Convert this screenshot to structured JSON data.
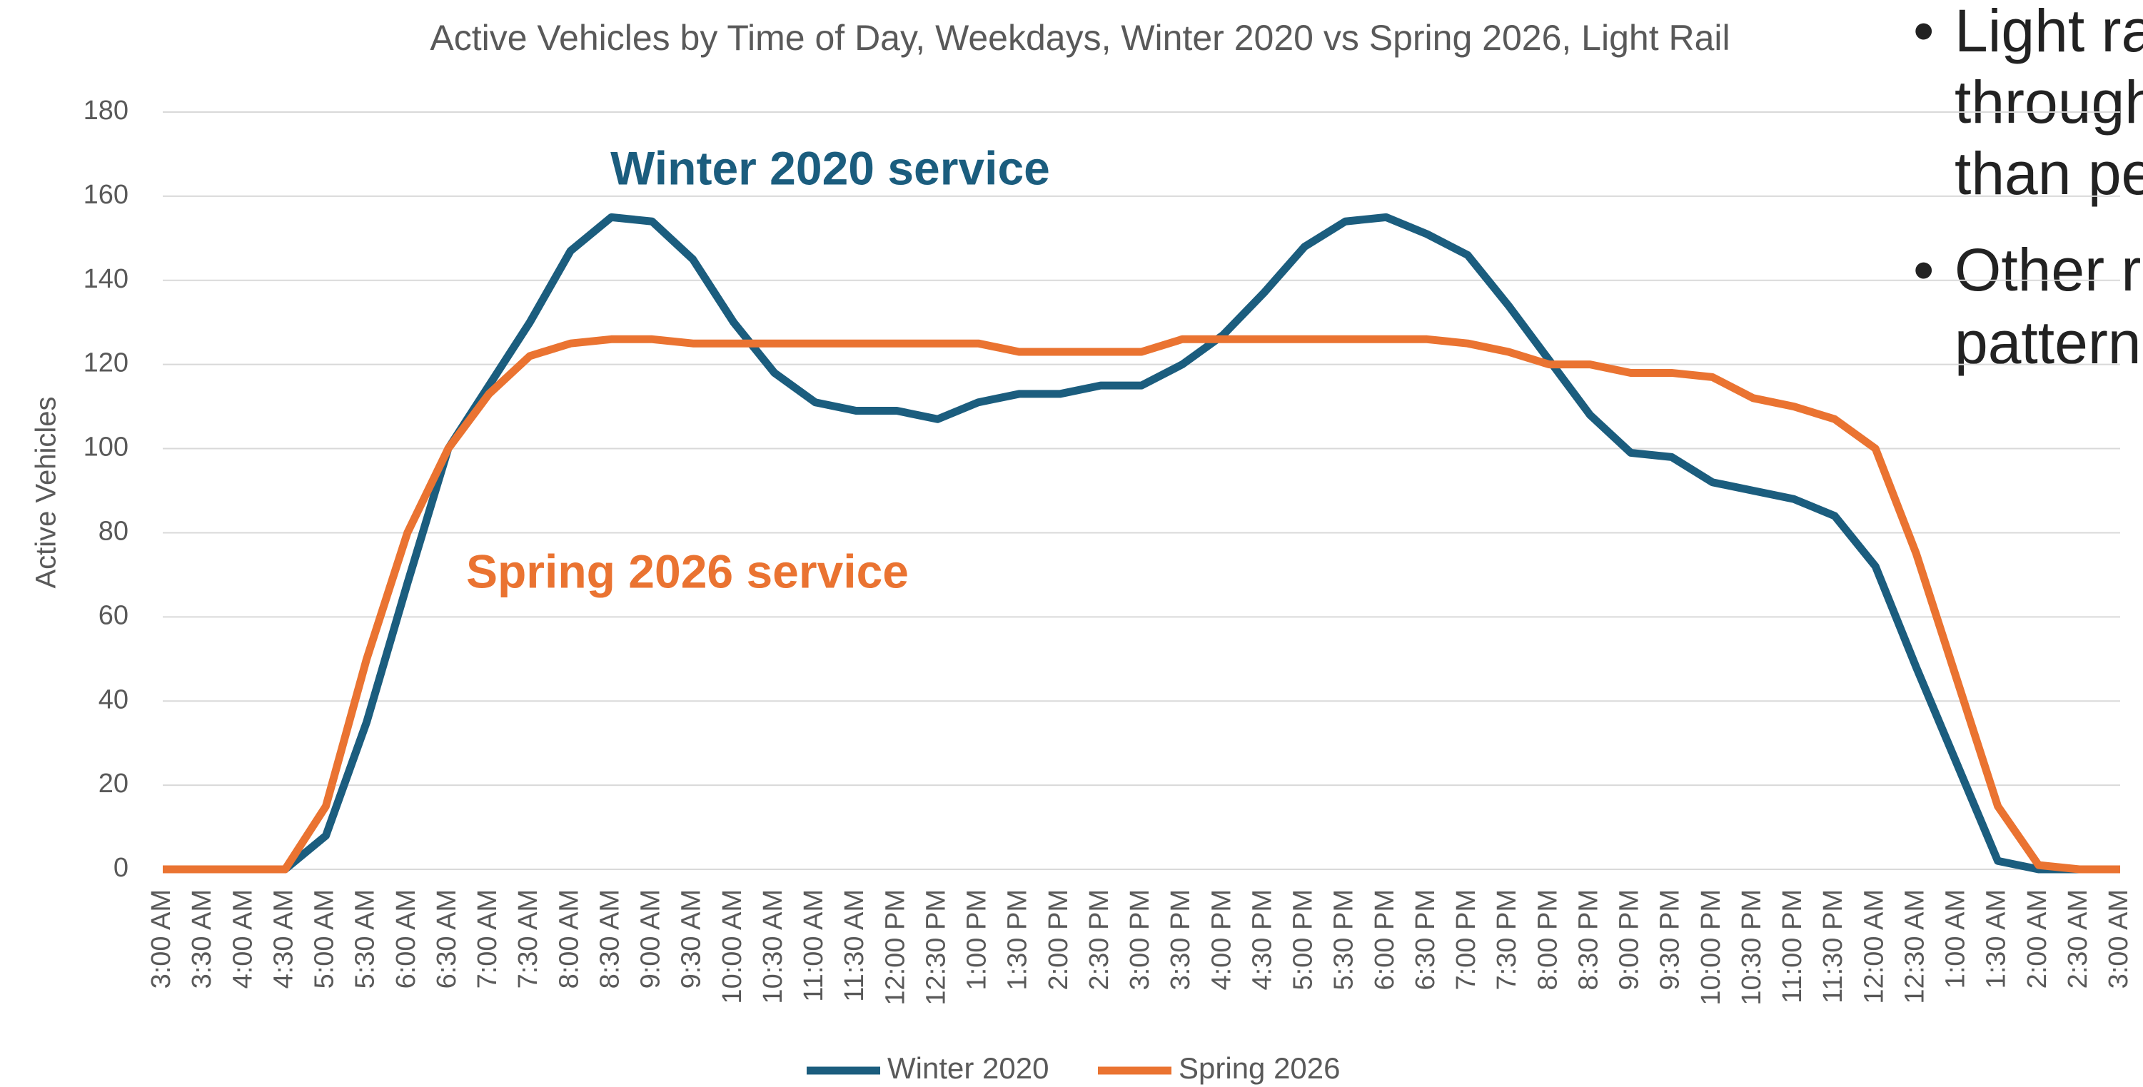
{
  "chart_data": {
    "type": "line",
    "title": "Active Vehicles by Time of Day, Weekdays, Winter 2020 vs Spring 2026, Light Rail",
    "y_label": "Active Vehicles",
    "categories": [
      "3:00 AM",
      "3:30 AM",
      "4:00 AM",
      "4:30 AM",
      "5:00 AM",
      "5:30 AM",
      "6:00 AM",
      "6:30 AM",
      "7:00 AM",
      "7:30 AM",
      "8:00 AM",
      "8:30 AM",
      "9:00 AM",
      "9:30 AM",
      "10:00 AM",
      "10:30 AM",
      "11:00 AM",
      "11:30 AM",
      "12:00 PM",
      "12:30 PM",
      "1:00 PM",
      "1:30 PM",
      "2:00 PM",
      "2:30 PM",
      "3:00 PM",
      "3:30 PM",
      "4:00 PM",
      "4:30 PM",
      "5:00 PM",
      "5:30 PM",
      "6:00 PM",
      "6:30 PM",
      "7:00 PM",
      "7:30 PM",
      "8:00 PM",
      "8:30 PM",
      "9:00 PM",
      "9:30 PM",
      "10:00 PM",
      "10:30 PM",
      "11:00 PM",
      "11:30 PM",
      "12:00 AM",
      "12:30 AM",
      "1:00 AM",
      "1:30 AM",
      "2:00 AM",
      "2:30 AM",
      "3:00 AM"
    ],
    "series": [
      {
        "name": "Winter 2020",
        "color": "#1b5d7e",
        "values": [
          0,
          0,
          0,
          0,
          8,
          35,
          68,
          100,
          115,
          130,
          147,
          155,
          154,
          145,
          130,
          118,
          111,
          109,
          109,
          107,
          111,
          113,
          113,
          115,
          115,
          120,
          127,
          137,
          148,
          154,
          155,
          151,
          146,
          134,
          121,
          108,
          99,
          98,
          92,
          90,
          88,
          84,
          72,
          48,
          25,
          2,
          0,
          0,
          0
        ]
      },
      {
        "name": "Spring 2026",
        "color": "#ea7331",
        "values": [
          0,
          0,
          0,
          0,
          15,
          50,
          80,
          100,
          113,
          122,
          125,
          126,
          126,
          125,
          125,
          125,
          125,
          125,
          125,
          125,
          125,
          123,
          123,
          123,
          123,
          126,
          126,
          126,
          126,
          126,
          126,
          126,
          125,
          123,
          120,
          120,
          118,
          118,
          117,
          112,
          110,
          107,
          100,
          75,
          45,
          15,
          1,
          0,
          0
        ]
      }
    ],
    "ylim": [
      0,
      180
    ],
    "yticks": [
      0,
      20,
      40,
      60,
      80,
      100,
      120,
      140,
      160,
      180
    ],
    "grid": true,
    "annotations": [
      "Winter 2020 service",
      "Spring 2026 service"
    ],
    "legend": "bottom"
  },
  "side_text": [
    "Light ra",
    "through",
    "than pe",
    "Other r",
    "pattern"
  ]
}
